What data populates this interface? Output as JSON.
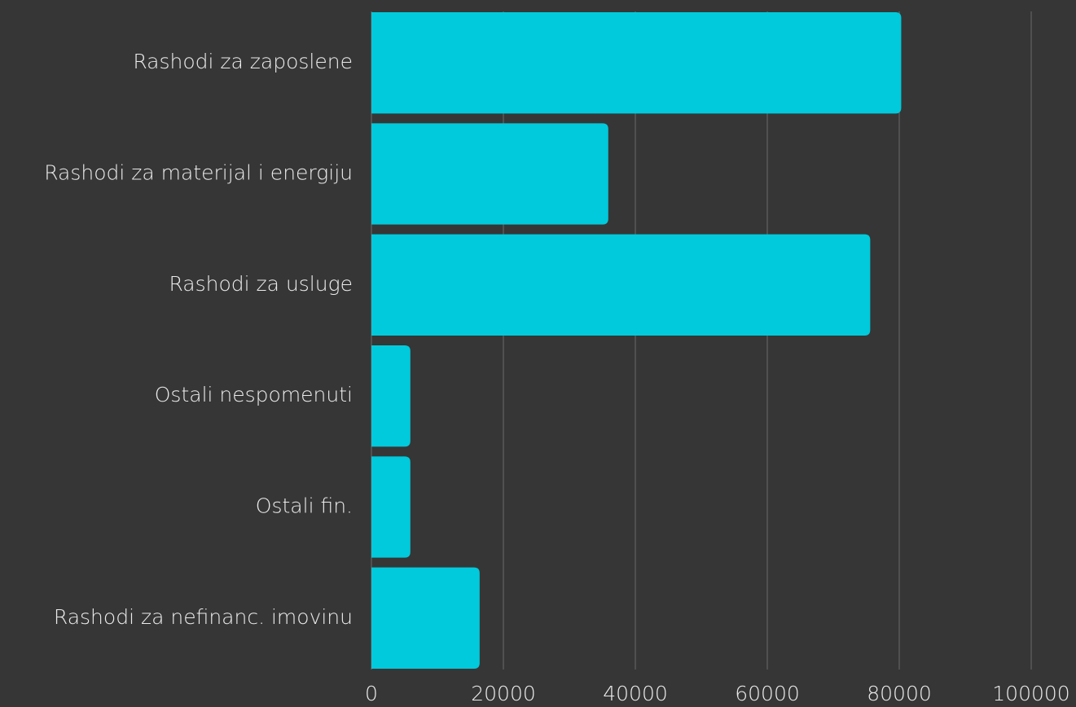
{
  "chart_data": {
    "type": "bar",
    "orientation": "horizontal",
    "categories": [
      "Rashodi za zaposlene",
      "Rashodi za materijal i energiju",
      "Rashodi za usluge",
      "Ostali nespomenuti",
      "Ostali fin.",
      "Rashodi za nefinanc. imovinu"
    ],
    "values": [
      80300,
      35900,
      75600,
      5900,
      5900,
      16400
    ],
    "color": "#00cadc",
    "xlim": [
      0,
      100000
    ],
    "xticks": [
      0,
      20000,
      40000,
      60000,
      80000,
      100000
    ],
    "grid": true
  }
}
